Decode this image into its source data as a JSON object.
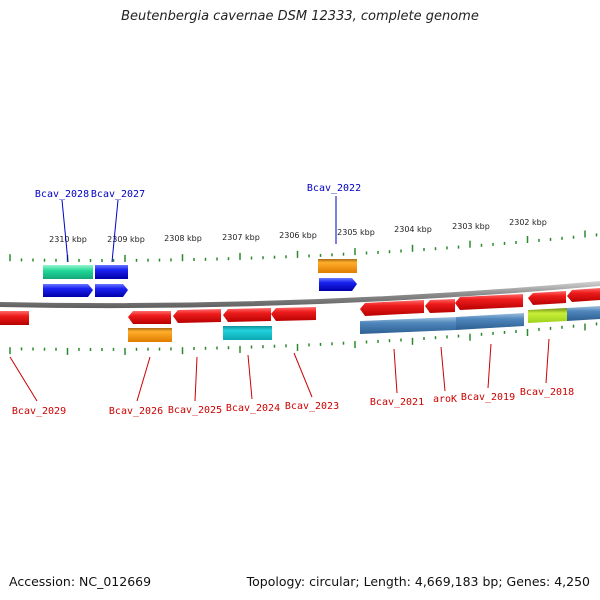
{
  "title": "Beutenbergia cavernae DSM 12333, complete genome",
  "footer": {
    "accession": "Accession: NC_012669",
    "summary": "Topology: circular; Length: 4,669,183 bp; Genes: 4,250"
  },
  "colors": {
    "plus_label": "#0000c8",
    "minus_label": "#cc0000",
    "ticks": "#2a8a2a",
    "backbone": "#888888"
  },
  "scale_labels": [
    "2310 kbp",
    "2309 kbp",
    "2308 kbp",
    "2307 kbp",
    "2306 kbp",
    "2305 kbp",
    "2304 kbp",
    "2303 kbp",
    "2302 kbp"
  ],
  "genes_plus": [
    {
      "name": "Bcav_2028",
      "color": "#1fd69a"
    },
    {
      "name": "Bcav_2027",
      "color": "#0a14e6"
    },
    {
      "name": "Bcav_2022",
      "color": "#f0900a"
    }
  ],
  "genes_minus": [
    {
      "name": "Bcav_2029",
      "color": "#e8101a"
    },
    {
      "name": "Bcav_2026",
      "color": "#e8101a"
    },
    {
      "name": "Bcav_2025",
      "color": "#e8101a"
    },
    {
      "name": "Bcav_2024",
      "color": "#e8101a"
    },
    {
      "name": "Bcav_2023",
      "color": "#e8101a"
    },
    {
      "name": "Bcav_2021",
      "color": "#e8101a"
    },
    {
      "name": "aroK",
      "color": "#e8101a"
    },
    {
      "name": "Bcav_2019",
      "color": "#e8101a"
    },
    {
      "name": "Bcav_2018",
      "color": "#e8101a"
    }
  ]
}
